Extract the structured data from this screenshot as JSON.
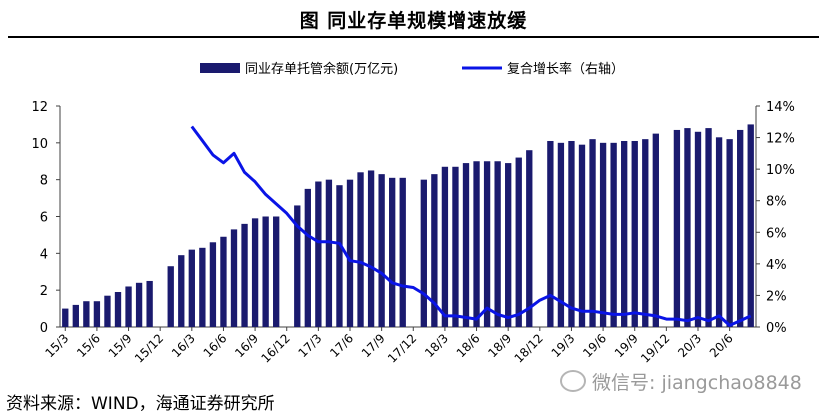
{
  "title": "图 同业存单规模增速放缓",
  "source_text": "资料来源：WIND，海通证券研究所",
  "watermark_text": "微信号: jiangchao8848",
  "colors": {
    "bar": "#1a1a6e",
    "line": "#0a14e6",
    "axis": "#404040"
  },
  "chart_data": {
    "type": "bar+line",
    "title": "同业存单规模增速放缓",
    "legend_position": "top-center",
    "grid": false,
    "categories": [
      "15/3",
      "15/4",
      "15/5",
      "15/6",
      "15/7",
      "15/8",
      "15/9",
      "15/10",
      "15/11",
      "15/12",
      "16/1",
      "16/2",
      "16/3",
      "16/4",
      "16/5",
      "16/6",
      "16/7",
      "16/8",
      "16/9",
      "16/10",
      "16/11",
      "16/12",
      "17/1",
      "17/2",
      "17/3",
      "17/4",
      "17/5",
      "17/6",
      "17/7",
      "17/8",
      "17/9",
      "17/10",
      "17/11",
      "17/12",
      "18/1",
      "18/2",
      "18/3",
      "18/4",
      "18/5",
      "18/6",
      "18/7",
      "18/8",
      "18/9",
      "18/10",
      "18/11",
      "18/12",
      "19/1",
      "19/2",
      "19/3",
      "19/4",
      "19/5",
      "19/6",
      "19/7",
      "19/8",
      "19/9",
      "19/10",
      "19/11",
      "19/12",
      "20/1",
      "20/2",
      "20/3",
      "20/4",
      "20/5",
      "20/6",
      "20/7",
      "20/8"
    ],
    "x_tick_labels": [
      "15/3",
      "15/6",
      "15/9",
      "15/12",
      "16/3",
      "16/6",
      "16/9",
      "16/12",
      "17/3",
      "17/6",
      "17/9",
      "17/12",
      "18/3",
      "18/6",
      "18/9",
      "18/12",
      "19/3",
      "19/6",
      "19/9",
      "19/12",
      "20/3",
      "20/6"
    ],
    "series": [
      {
        "name": "同业存单托管余额(万亿元)",
        "type": "bar",
        "axis": "left",
        "values": [
          1.0,
          1.2,
          1.4,
          1.4,
          1.7,
          1.9,
          2.2,
          2.4,
          2.5,
          null,
          3.3,
          3.9,
          4.2,
          4.3,
          4.6,
          4.9,
          5.3,
          5.6,
          5.9,
          6.0,
          6.0,
          null,
          6.6,
          7.5,
          7.9,
          8.0,
          7.7,
          8.0,
          8.4,
          8.5,
          8.3,
          8.1,
          8.1,
          null,
          8.0,
          8.3,
          8.7,
          8.7,
          8.9,
          9.0,
          9.0,
          9.0,
          8.9,
          9.2,
          9.6,
          null,
          10.1,
          10.0,
          10.1,
          9.9,
          10.2,
          10.0,
          10.0,
          10.1,
          10.1,
          10.2,
          10.5,
          null,
          10.7,
          10.8,
          10.6,
          10.8,
          10.3,
          10.2,
          10.7,
          11.0
        ]
      },
      {
        "name": "复合增长率（右轴）",
        "type": "line",
        "axis": "right",
        "unit": "%",
        "values": [
          null,
          null,
          null,
          null,
          null,
          null,
          null,
          null,
          null,
          null,
          null,
          null,
          12.7,
          11.8,
          10.9,
          10.4,
          11.0,
          9.8,
          9.2,
          8.4,
          7.8,
          7.2,
          6.4,
          5.8,
          5.4,
          5.4,
          5.3,
          4.2,
          4.1,
          3.8,
          3.4,
          2.8,
          2.6,
          2.5,
          2.1,
          1.5,
          0.7,
          0.7,
          0.6,
          0.5,
          1.2,
          0.8,
          0.6,
          0.8,
          1.2,
          1.7,
          2.0,
          1.6,
          1.2,
          1.0,
          1.0,
          0.9,
          0.8,
          0.8,
          0.9,
          0.8,
          0.7,
          0.5,
          0.5,
          0.4,
          0.6,
          0.4,
          0.7,
          0.1,
          0.4,
          0.7
        ]
      }
    ],
    "y_left": {
      "min": 0,
      "max": 12,
      "ticks": [
        0,
        2,
        4,
        6,
        8,
        10,
        12
      ]
    },
    "y_right": {
      "min": 0,
      "max": 14,
      "ticks": [
        0,
        2,
        4,
        6,
        8,
        10,
        12,
        14
      ],
      "tick_labels": [
        "0%",
        "2%",
        "4%",
        "6%",
        "8%",
        "10%",
        "12%",
        "14%"
      ]
    }
  }
}
